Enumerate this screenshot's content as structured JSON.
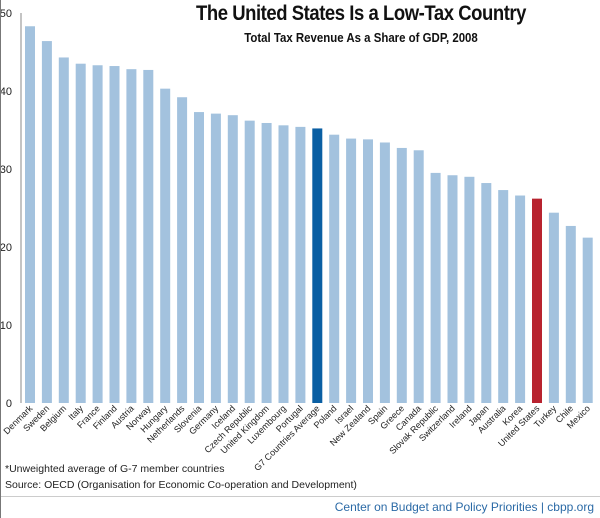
{
  "chart_data": {
    "type": "bar",
    "title": "The United States Is a Low-Tax Country",
    "subtitle": "Total Tax Revenue As a Share of GDP, 2008",
    "xlabel": "",
    "ylabel": "",
    "ylim": [
      0,
      50
    ],
    "yticks": [
      0,
      10,
      20,
      30,
      40,
      50
    ],
    "grid": false,
    "categories": [
      "Denmark",
      "Sweden",
      "Belgium",
      "Italy",
      "France",
      "Finland",
      "Austria",
      "Norway",
      "Hungary",
      "Netherlands",
      "Slovenia",
      "Germany",
      "Iceland",
      "Czech Republic",
      "United Kingdom",
      "Luxembourg",
      "Portugal",
      "G7 Countries Average",
      "Poland",
      "Israel",
      "New Zealand",
      "Spain",
      "Greece",
      "Canada",
      "Slovak Republic",
      "Switzerland",
      "Ireland",
      "Japan",
      "Australia",
      "Korea",
      "United States",
      "Turkey",
      "Chile",
      "Mexico"
    ],
    "values": [
      48.3,
      46.4,
      44.3,
      43.5,
      43.3,
      43.2,
      42.8,
      42.7,
      40.3,
      39.2,
      37.3,
      37.1,
      36.9,
      36.2,
      35.9,
      35.6,
      35.4,
      35.2,
      34.4,
      33.9,
      33.8,
      33.4,
      32.7,
      32.4,
      29.5,
      29.2,
      29.0,
      28.2,
      27.3,
      26.6,
      26.2,
      24.4,
      22.7,
      21.2
    ],
    "colors": {
      "default": "#a3c2de",
      "G7 Countries Average": "#0a5fa3",
      "United States": "#b8232f"
    }
  },
  "notes": {
    "footnote": "*Unweighted average of G-7 member countries",
    "source": "Source: OECD (Organisation for Economic Co-operation and Development)"
  },
  "credit": "Center on Budget and Policy Priorities | cbpp.org"
}
